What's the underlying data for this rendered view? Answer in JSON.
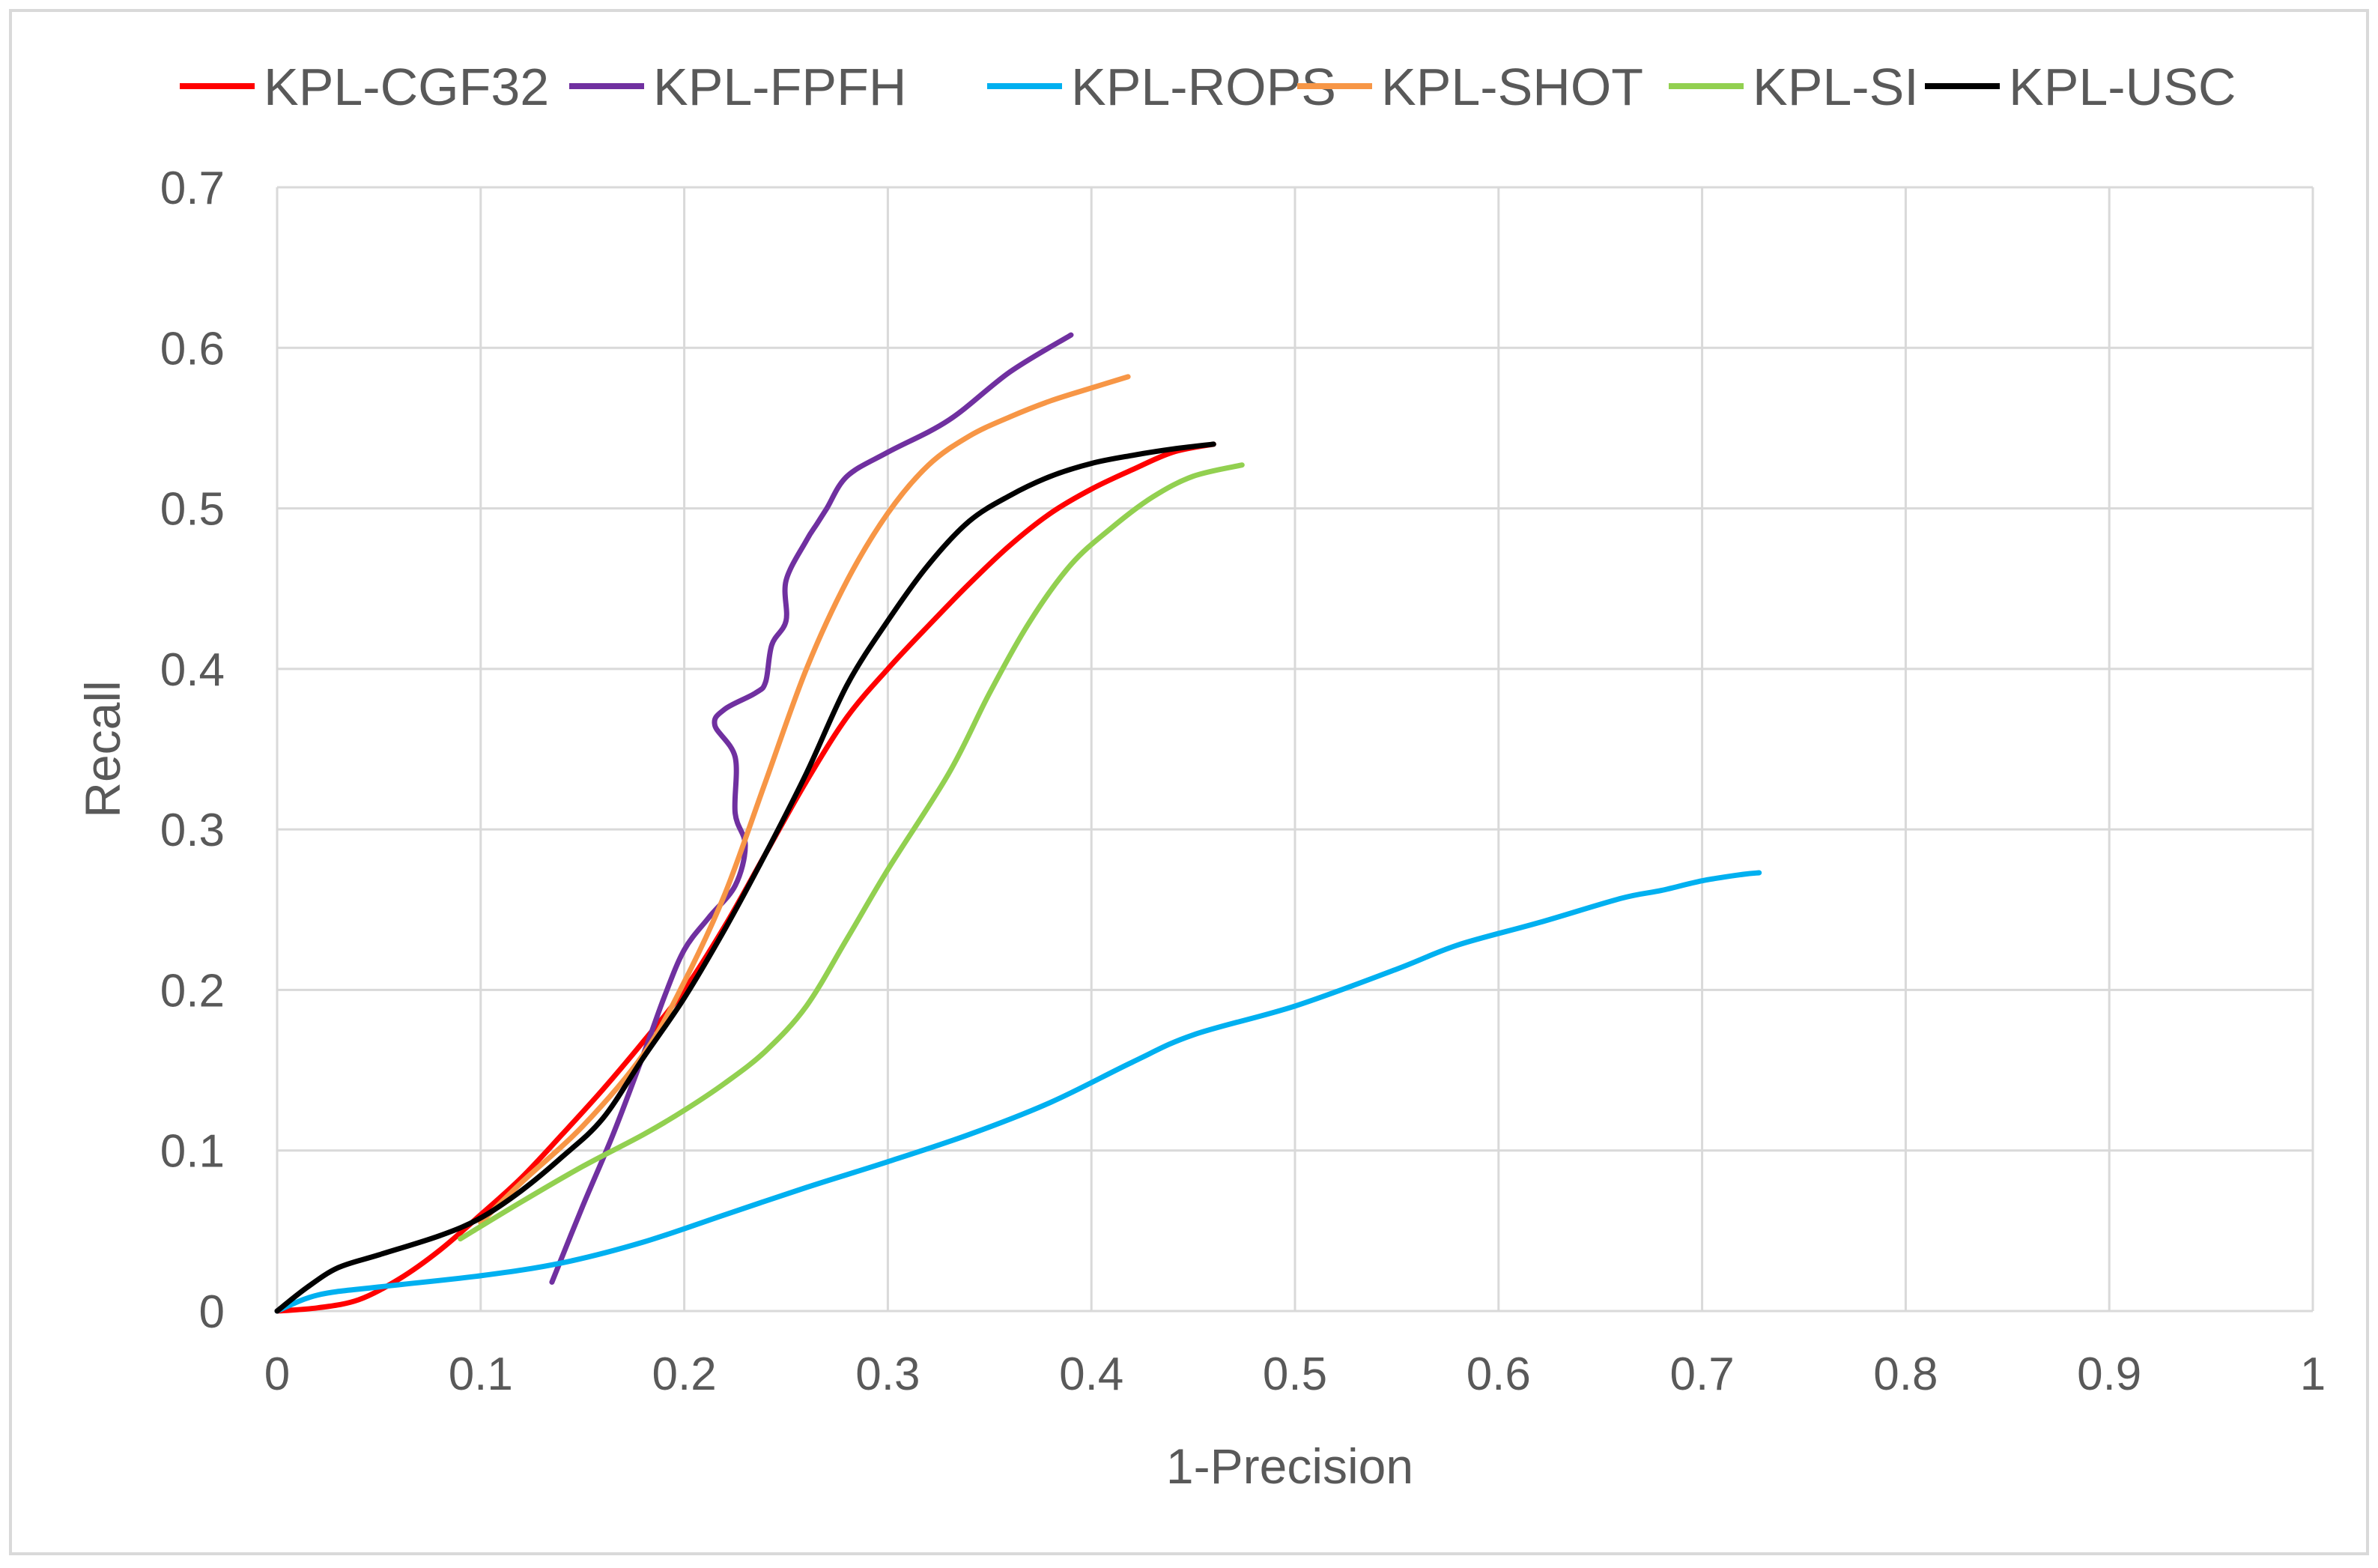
{
  "chart_data": {
    "type": "line",
    "title": "",
    "xlabel": "1-Precision",
    "ylabel": "Recall",
    "xlim": [
      0,
      1
    ],
    "ylim": [
      0,
      0.7
    ],
    "x_ticks": [
      "0",
      "0.1",
      "0.2",
      "0.3",
      "0.4",
      "0.5",
      "0.6",
      "0.7",
      "0.8",
      "0.9",
      "1"
    ],
    "y_ticks": [
      "0",
      "0.1",
      "0.2",
      "0.3",
      "0.4",
      "0.5",
      "0.6",
      "0.7"
    ],
    "grid": true,
    "legend_position": "top",
    "series": [
      {
        "name": "KPL-CGF32",
        "color": "#ff0000",
        "points": [
          [
            0,
            0
          ],
          [
            0.02,
            0.002
          ],
          [
            0.04,
            0.007
          ],
          [
            0.06,
            0.02
          ],
          [
            0.08,
            0.038
          ],
          [
            0.1,
            0.06
          ],
          [
            0.12,
            0.083
          ],
          [
            0.14,
            0.11
          ],
          [
            0.16,
            0.138
          ],
          [
            0.18,
            0.168
          ],
          [
            0.2,
            0.2
          ],
          [
            0.22,
            0.24
          ],
          [
            0.24,
            0.285
          ],
          [
            0.26,
            0.33
          ],
          [
            0.28,
            0.37
          ],
          [
            0.3,
            0.4
          ],
          [
            0.32,
            0.427
          ],
          [
            0.34,
            0.453
          ],
          [
            0.36,
            0.477
          ],
          [
            0.38,
            0.497
          ],
          [
            0.4,
            0.512
          ],
          [
            0.42,
            0.524
          ],
          [
            0.44,
            0.535
          ],
          [
            0.46,
            0.54
          ]
        ]
      },
      {
        "name": "KPL-FPFH",
        "color": "#7030a0",
        "points": [
          [
            0.135,
            0.018
          ],
          [
            0.15,
            0.065
          ],
          [
            0.165,
            0.11
          ],
          [
            0.18,
            0.16
          ],
          [
            0.19,
            0.195
          ],
          [
            0.2,
            0.225
          ],
          [
            0.212,
            0.245
          ],
          [
            0.225,
            0.265
          ],
          [
            0.23,
            0.29
          ],
          [
            0.225,
            0.31
          ],
          [
            0.225,
            0.345
          ],
          [
            0.215,
            0.365
          ],
          [
            0.22,
            0.375
          ],
          [
            0.235,
            0.385
          ],
          [
            0.24,
            0.392
          ],
          [
            0.243,
            0.415
          ],
          [
            0.25,
            0.43
          ],
          [
            0.25,
            0.455
          ],
          [
            0.26,
            0.48
          ],
          [
            0.265,
            0.49
          ],
          [
            0.27,
            0.5
          ],
          [
            0.28,
            0.52
          ],
          [
            0.3,
            0.535
          ],
          [
            0.33,
            0.555
          ],
          [
            0.36,
            0.585
          ],
          [
            0.39,
            0.608
          ]
        ]
      },
      {
        "name": "KPL-ROPS",
        "color": "#00b0f0",
        "points": [
          [
            0,
            0
          ],
          [
            0.02,
            0.01
          ],
          [
            0.05,
            0.015
          ],
          [
            0.1,
            0.022
          ],
          [
            0.14,
            0.03
          ],
          [
            0.18,
            0.043
          ],
          [
            0.22,
            0.06
          ],
          [
            0.26,
            0.077
          ],
          [
            0.3,
            0.093
          ],
          [
            0.34,
            0.11
          ],
          [
            0.38,
            0.13
          ],
          [
            0.42,
            0.155
          ],
          [
            0.45,
            0.172
          ],
          [
            0.5,
            0.19
          ],
          [
            0.55,
            0.213
          ],
          [
            0.58,
            0.228
          ],
          [
            0.62,
            0.242
          ],
          [
            0.66,
            0.257
          ],
          [
            0.68,
            0.262
          ],
          [
            0.7,
            0.268
          ],
          [
            0.72,
            0.272
          ],
          [
            0.728,
            0.273
          ]
        ]
      },
      {
        "name": "KPL-SHOT",
        "color": "#f79646",
        "points": [
          [
            0.1,
            0.055
          ],
          [
            0.12,
            0.08
          ],
          [
            0.15,
            0.115
          ],
          [
            0.18,
            0.16
          ],
          [
            0.2,
            0.205
          ],
          [
            0.22,
            0.26
          ],
          [
            0.24,
            0.33
          ],
          [
            0.26,
            0.4
          ],
          [
            0.28,
            0.455
          ],
          [
            0.3,
            0.497
          ],
          [
            0.32,
            0.527
          ],
          [
            0.34,
            0.545
          ],
          [
            0.36,
            0.557
          ],
          [
            0.38,
            0.567
          ],
          [
            0.4,
            0.575
          ],
          [
            0.418,
            0.582
          ]
        ]
      },
      {
        "name": "KPL-SI",
        "color": "#92d050",
        "points": [
          [
            0.09,
            0.045
          ],
          [
            0.12,
            0.068
          ],
          [
            0.15,
            0.09
          ],
          [
            0.18,
            0.11
          ],
          [
            0.2,
            0.125
          ],
          [
            0.22,
            0.142
          ],
          [
            0.24,
            0.162
          ],
          [
            0.26,
            0.19
          ],
          [
            0.28,
            0.232
          ],
          [
            0.3,
            0.275
          ],
          [
            0.33,
            0.335
          ],
          [
            0.35,
            0.385
          ],
          [
            0.37,
            0.43
          ],
          [
            0.39,
            0.465
          ],
          [
            0.41,
            0.488
          ],
          [
            0.43,
            0.507
          ],
          [
            0.45,
            0.52
          ],
          [
            0.474,
            0.527
          ]
        ]
      },
      {
        "name": "KPL-USC",
        "color": "#000000",
        "points": [
          [
            0,
            0
          ],
          [
            0.015,
            0.015
          ],
          [
            0.03,
            0.027
          ],
          [
            0.05,
            0.035
          ],
          [
            0.08,
            0.047
          ],
          [
            0.1,
            0.058
          ],
          [
            0.12,
            0.075
          ],
          [
            0.14,
            0.096
          ],
          [
            0.16,
            0.12
          ],
          [
            0.18,
            0.158
          ],
          [
            0.2,
            0.195
          ],
          [
            0.22,
            0.238
          ],
          [
            0.24,
            0.285
          ],
          [
            0.26,
            0.335
          ],
          [
            0.28,
            0.39
          ],
          [
            0.3,
            0.43
          ],
          [
            0.32,
            0.465
          ],
          [
            0.34,
            0.492
          ],
          [
            0.36,
            0.508
          ],
          [
            0.38,
            0.52
          ],
          [
            0.4,
            0.528
          ],
          [
            0.42,
            0.533
          ],
          [
            0.44,
            0.537
          ],
          [
            0.46,
            0.54
          ]
        ]
      }
    ]
  }
}
